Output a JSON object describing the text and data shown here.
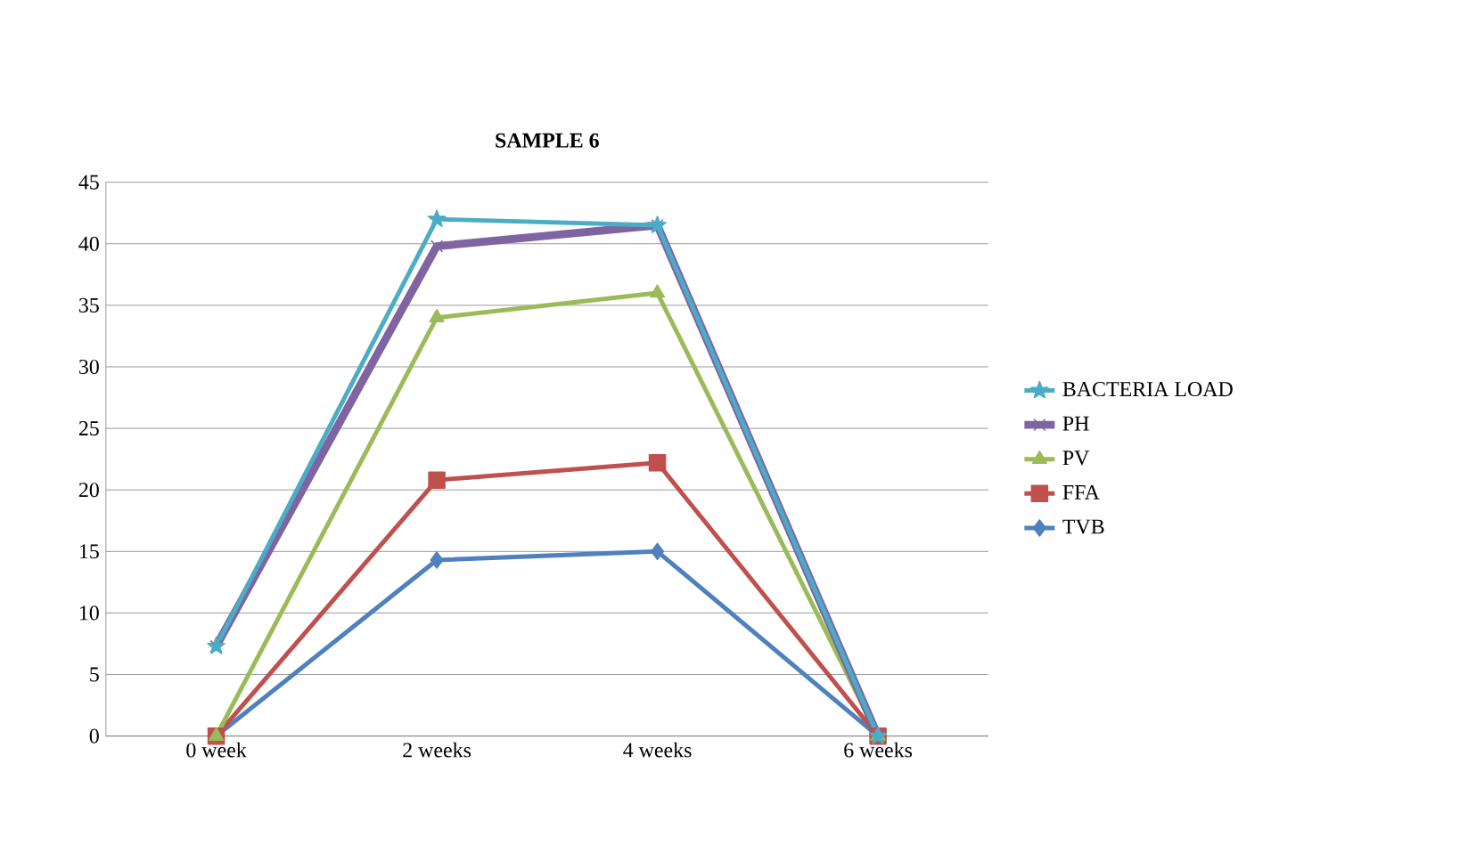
{
  "chart_data": {
    "type": "line",
    "title": "SAMPLE 6",
    "categories": [
      "0 week",
      "2 weeks",
      "4 weeks",
      "6 weeks"
    ],
    "series": [
      {
        "name": "BACTERIA LOAD",
        "color": "#4bacc6",
        "marker": "star",
        "values": [
          7.3,
          42,
          41.5,
          0
        ]
      },
      {
        "name": "PH",
        "color": "#8064a2",
        "marker": "cross",
        "values": [
          7.3,
          39.8,
          41.5,
          0
        ]
      },
      {
        "name": "PV",
        "color": "#9bbb59",
        "marker": "triangle",
        "values": [
          0,
          34,
          36,
          0
        ]
      },
      {
        "name": "FFA",
        "color": "#c0504d",
        "marker": "square",
        "values": [
          0,
          20.8,
          22.2,
          0
        ]
      },
      {
        "name": "TVB",
        "color": "#4f81bd",
        "marker": "diamond",
        "values": [
          0,
          14.3,
          15,
          0
        ]
      }
    ],
    "ylim": [
      0,
      45
    ],
    "yticks": [
      0,
      5,
      10,
      15,
      20,
      25,
      30,
      35,
      40,
      45
    ],
    "grid": "y",
    "legend": "right"
  }
}
